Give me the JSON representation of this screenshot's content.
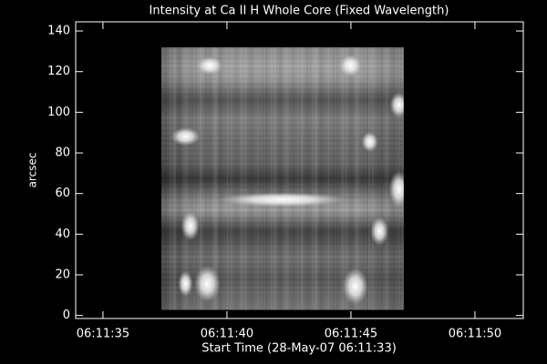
{
  "chart_data": {
    "type": "image",
    "title": "Intensity at Ca II H Whole Core (Fixed Wavelength)",
    "x_label": "Start Time (28-May-07 06:11:33)",
    "y_label": "arcsec",
    "xlim": [
      0.9,
      18.95
    ],
    "xticks": [
      {
        "value": 2,
        "label": "06:11:35"
      },
      {
        "value": 7,
        "label": "06:11:40"
      },
      {
        "value": 12,
        "label": "06:11:45"
      },
      {
        "value": 17,
        "label": "06:11:50"
      }
    ],
    "ylim": [
      -1.5,
      144.5
    ],
    "yticks": [
      0,
      20,
      40,
      60,
      80,
      100,
      120,
      140
    ],
    "image_x": [
      4.35,
      14.13
    ],
    "image_y": [
      2.7,
      132
    ],
    "colormap": "gray"
  }
}
